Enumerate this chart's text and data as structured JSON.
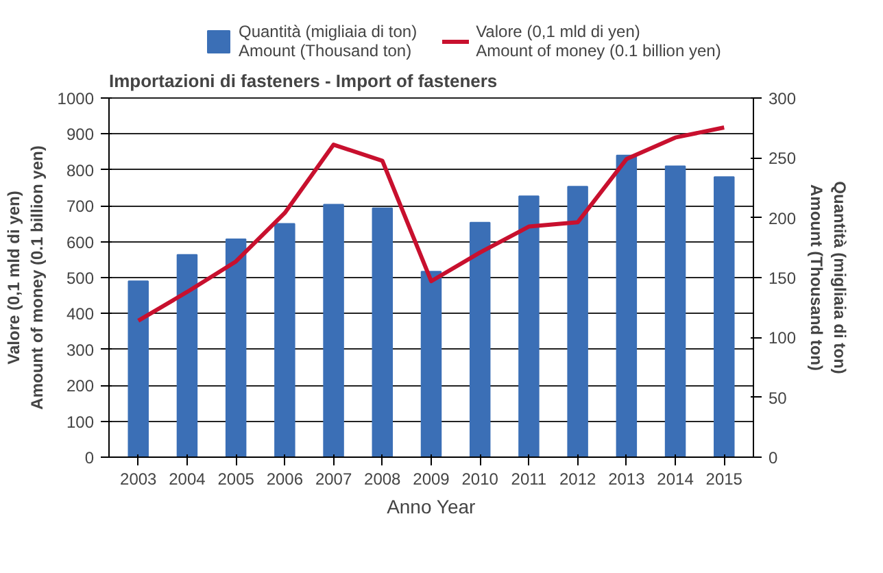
{
  "chart_data": {
    "type": "bar",
    "title": "Importazioni di fasteners - Import of fasteners",
    "xlabel": "Anno Year",
    "ylabel": "Valore (0,1 mld di yen)\nAmount of money (0.1 billion yen)",
    "y2label": "Quantità (migliaia di ton)\nAmount (Thousand ton)",
    "categories": [
      "2003",
      "2004",
      "2005",
      "2006",
      "2007",
      "2008",
      "2009",
      "2010",
      "2011",
      "2012",
      "2013",
      "2014",
      "2015"
    ],
    "series": [
      {
        "name": "Quantità (migliaia di ton)\nAmount (Thousand ton)",
        "axis": "y2",
        "color": "#3b6fb6",
        "values": [
          147,
          169,
          182,
          195,
          211,
          208,
          155,
          196,
          218,
          226,
          252,
          243,
          234
        ]
      },
      {
        "name": "Valore (0,1 mld di yen)\nAmount of money (0.1 billion yen)",
        "type": "line",
        "color": "#c8102e",
        "values": [
          380,
          460,
          545,
          680,
          870,
          825,
          490,
          570,
          642,
          654,
          830,
          890,
          918
        ]
      }
    ],
    "ylim": [
      0,
      1000
    ],
    "yticks": [
      0,
      100,
      200,
      300,
      400,
      500,
      600,
      700,
      800,
      900,
      1000
    ],
    "y2lim": [
      0,
      300
    ],
    "y2ticks": [
      0,
      50,
      100,
      150,
      200,
      250,
      300
    ],
    "grid": "y",
    "legend": "top"
  }
}
